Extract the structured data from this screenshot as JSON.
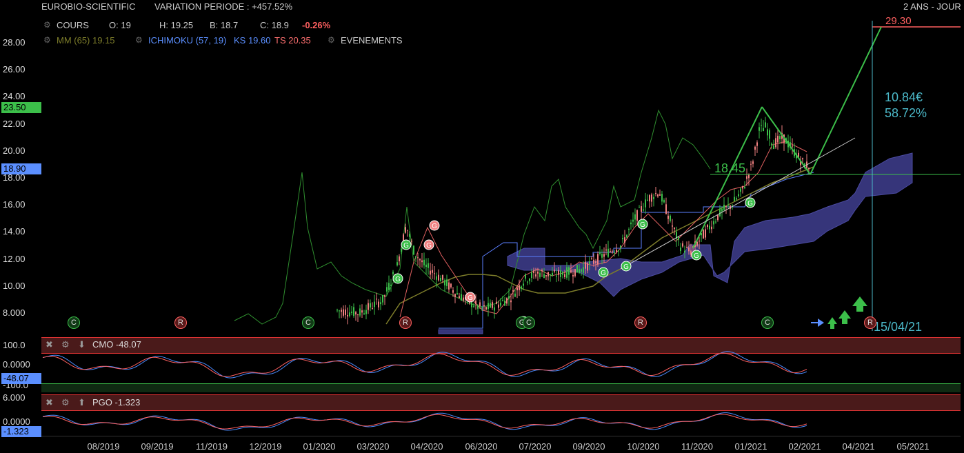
{
  "header": {
    "symbol": "EUROBIO-SCIENTIFIC",
    "variation": "VARIATION PERIODE : +457.52%",
    "period": "2 ANS - JOUR",
    "cours_label": "COURS",
    "open": "O: 19",
    "high": "H: 19.25",
    "low": "B: 18.7",
    "close": "C: 18.9",
    "change": "-0.26%",
    "mm": "MM (65) 19.15",
    "ichimoku": "ICHIMOKU (57, 19)",
    "ks": "KS 19.60",
    "ts": "TS 20.35",
    "events": "EVENEMENTS"
  },
  "colors": {
    "up": "#3cbf4a",
    "down": "#f08080",
    "mm": "#7d7d2a",
    "ichimoku": "#5b7fff",
    "cloud": "#36357a",
    "cmo_line": "#4a8cff",
    "signal": "#ff6060",
    "accent_cyan": "#4bb8c8"
  },
  "price_axis": {
    "labels": [
      "28.00",
      "26.00",
      "24.00",
      "22.00",
      "20.00",
      "18.00",
      "16.00",
      "14.00",
      "12.00",
      "10.00",
      "8.000"
    ]
  },
  "price_tags": {
    "high_tag": "23.50",
    "last_tag": "18.90"
  },
  "annotations": {
    "target": "29.30",
    "gain_value": "10.84€",
    "gain_pct": "58.72%",
    "level": "18.45",
    "date": "15/04/21"
  },
  "events": [
    "C",
    "R",
    "C",
    "R",
    "G",
    "C",
    "R",
    "C",
    "R"
  ],
  "cmo": {
    "label": "CMO -48.07",
    "top": "100.0",
    "mid": "0.0000",
    "bottom": "-100.0",
    "value_tag": "-48.07"
  },
  "pgo": {
    "label": "PGO -1.323",
    "top": "6.000",
    "mid": "0.0000",
    "value_tag": "-1.323"
  },
  "x_axis": {
    "labels": [
      "08/2019",
      "09/2019",
      "11/2019",
      "12/2019",
      "01/2020",
      "03/2020",
      "04/2020",
      "06/2020",
      "07/2020",
      "09/2020",
      "10/2020",
      "11/2020",
      "01/2021",
      "02/2021",
      "04/2021",
      "05/2021"
    ]
  },
  "chart_data": {
    "type": "candlestick",
    "title": "EUROBIO-SCIENTIFIC",
    "x": [
      "08/2019",
      "09/2019",
      "11/2019",
      "12/2019",
      "01/2020",
      "03/2020",
      "04/2020",
      "06/2020",
      "07/2020",
      "09/2020",
      "10/2020",
      "11/2020",
      "01/2021",
      "02/2021",
      "04/2021",
      "05/2021"
    ],
    "ylim": [
      7,
      29.3
    ],
    "series": [
      {
        "name": "COURS",
        "values": [
          null,
          null,
          null,
          null,
          7.6,
          12.5,
          10.8,
          8.2,
          11.0,
          11.5,
          16.0,
          13.0,
          21.8,
          18.9,
          null,
          null
        ]
      },
      {
        "name": "MM (65)",
        "values": [
          null,
          null,
          null,
          null,
          null,
          8.5,
          10.2,
          10.5,
          10.4,
          10.8,
          12.0,
          14.0,
          16.5,
          19.15,
          null,
          null
        ]
      },
      {
        "name": "ICHIMOKU (57, 19)",
        "values": [
          null,
          null,
          null,
          null,
          null,
          null,
          null,
          7.2,
          12.0,
          11.0,
          10.5,
          11.5,
          14.0,
          16.5,
          18.5,
          null
        ]
      }
    ],
    "last": {
      "open": 19,
      "high": 19.25,
      "low": 18.7,
      "close": 18.9,
      "change_pct": -0.26
    },
    "target": 29.3,
    "gain_eur": 10.84,
    "gain_pct": 58.72,
    "support": 18.45
  }
}
